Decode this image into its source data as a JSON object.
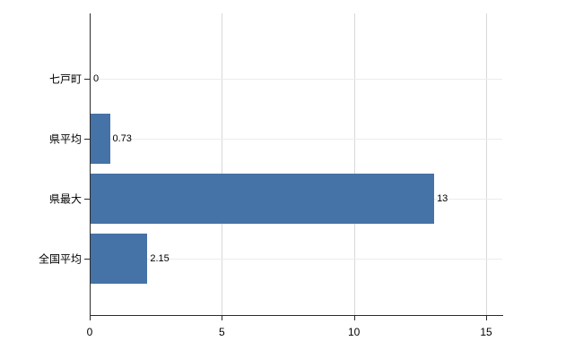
{
  "chart_data": {
    "type": "bar",
    "orientation": "horizontal",
    "title": "",
    "xlabel": "",
    "ylabel": "",
    "categories": [
      "七戸町",
      "県平均",
      "県最大",
      "全国平均"
    ],
    "values": [
      0,
      0.73,
      13,
      2.15
    ],
    "value_labels": [
      "0",
      "0.73",
      "13",
      "2.15"
    ],
    "x_ticks": [
      0,
      5,
      10,
      15
    ],
    "x_tick_labels": [
      "0",
      "5",
      "10",
      "15"
    ],
    "xlim": [
      0,
      15
    ],
    "grid": "vertical gridlines at 5, 10, 15; faint horizontal lines at category centers",
    "legend": false,
    "bar_color": "#4572a7",
    "background_color": "#ffffff",
    "axis_color": "#2b2b2b"
  }
}
